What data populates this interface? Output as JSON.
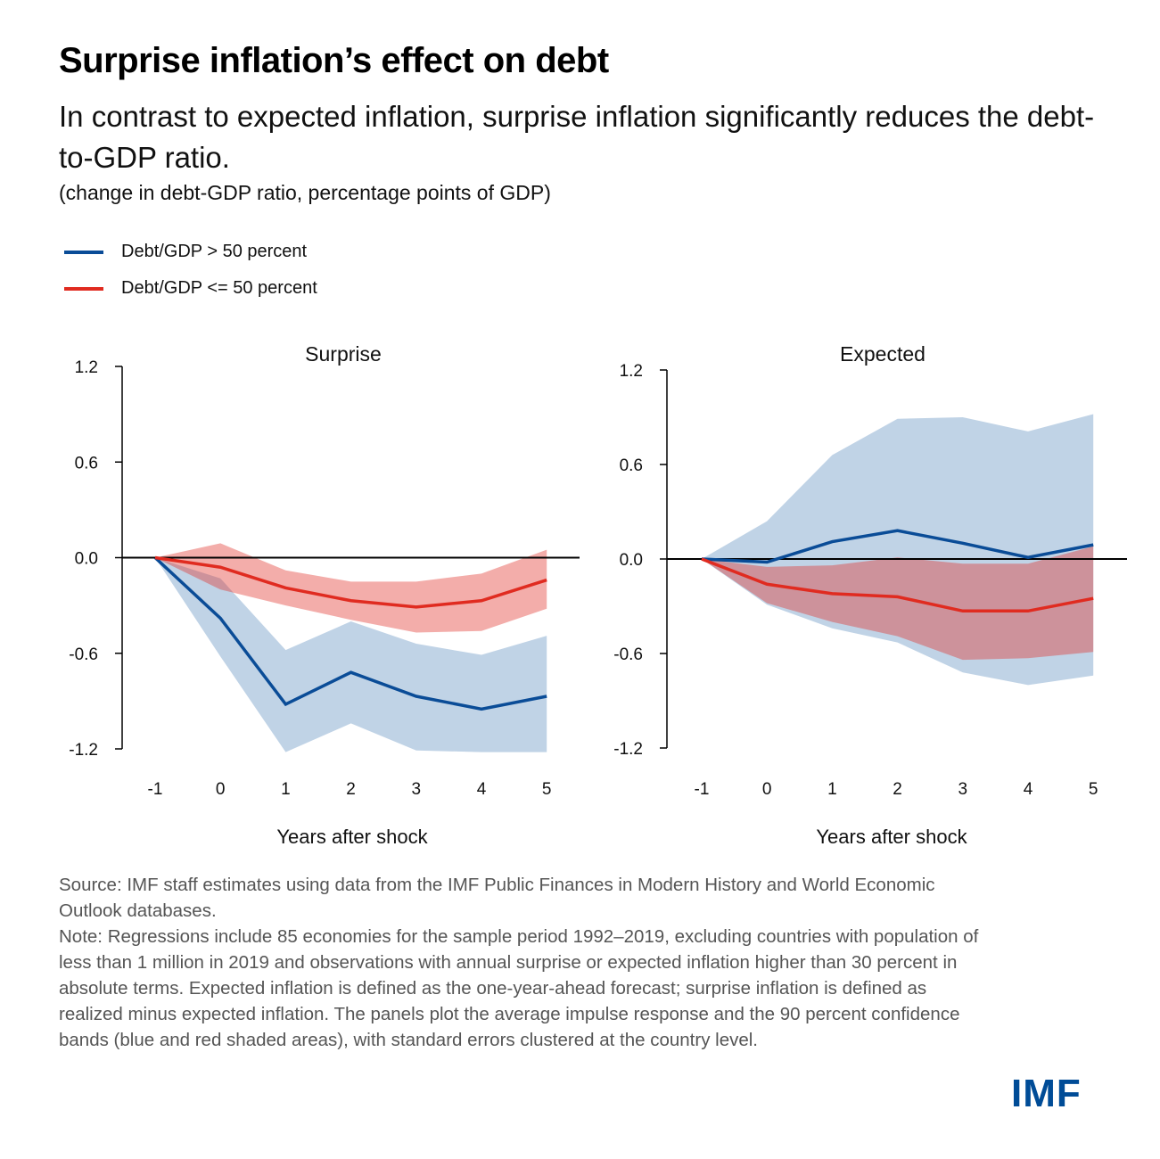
{
  "header": {
    "title": "Surprise inflation’s effect on debt",
    "subtitle": "In contrast to expected inflation, surprise inflation significantly reduces the debt-to-GDP ratio.",
    "units": "(change in debt-GDP ratio, percentage points of GDP)"
  },
  "legend": [
    {
      "label": "Debt/GDP > 50 percent",
      "color": "#0a4c97"
    },
    {
      "label": "Debt/GDP <= 50 percent",
      "color": "#e02b20"
    }
  ],
  "colors": {
    "high_debt_line": "#0a4c97",
    "high_debt_band": "#c0d3e6",
    "low_debt_line": "#e02b20",
    "low_debt_band": "rgba(226,50,43,0.4)",
    "brand": "#004c97"
  },
  "chart_data": [
    {
      "type": "line",
      "title": "Surprise",
      "xlabel": "Years after shock",
      "ylabel": "",
      "x": [
        -1,
        0,
        1,
        2,
        3,
        4,
        5
      ],
      "x_tick_labels": [
        "-1",
        "0",
        "1",
        "2",
        "3",
        "4",
        "5"
      ],
      "ylim": [
        -1.2,
        1.2
      ],
      "y_ticks": [
        1.2,
        0.6,
        0.0,
        -0.6,
        -1.2
      ],
      "y_tick_labels": [
        "1.2",
        "0.6",
        "0.0",
        "-0.6",
        "-1.2"
      ],
      "grid": false,
      "series": [
        {
          "name": "Debt/GDP > 50 percent",
          "values": [
            0,
            -0.38,
            -0.92,
            -0.72,
            -0.87,
            -0.95,
            -0.87
          ],
          "band_upper": [
            0,
            -0.13,
            -0.58,
            -0.4,
            -0.54,
            -0.61,
            -0.49
          ],
          "band_lower": [
            0,
            -0.62,
            -1.25,
            -1.04,
            -1.21,
            -1.3,
            -1.3
          ]
        },
        {
          "name": "Debt/GDP <= 50 percent",
          "values": [
            0,
            -0.06,
            -0.19,
            -0.27,
            -0.31,
            -0.27,
            -0.14
          ],
          "band_upper": [
            0,
            0.09,
            -0.08,
            -0.15,
            -0.15,
            -0.1,
            0.05
          ],
          "band_lower": [
            0,
            -0.2,
            -0.3,
            -0.39,
            -0.47,
            -0.46,
            -0.32
          ]
        }
      ]
    },
    {
      "type": "line",
      "title": "Expected",
      "xlabel": "Years after shock",
      "ylabel": "",
      "x": [
        -1,
        0,
        1,
        2,
        3,
        4,
        5
      ],
      "x_tick_labels": [
        "-1",
        "0",
        "1",
        "2",
        "3",
        "4",
        "5"
      ],
      "ylim": [
        -1.2,
        1.2
      ],
      "y_ticks": [
        1.2,
        0.6,
        0.0,
        -0.6,
        -1.2
      ],
      "y_tick_labels": [
        "1.2",
        "0.6",
        "0.0",
        "-0.6",
        "-1.2"
      ],
      "grid": false,
      "series": [
        {
          "name": "Debt/GDP > 50 percent",
          "values": [
            0,
            -0.02,
            0.11,
            0.18,
            0.1,
            0.01,
            0.09
          ],
          "band_upper": [
            0,
            0.24,
            0.66,
            0.89,
            0.9,
            0.81,
            0.92
          ],
          "band_lower": [
            0,
            -0.29,
            -0.44,
            -0.53,
            -0.72,
            -0.8,
            -0.74
          ]
        },
        {
          "name": "Debt/GDP <= 50 percent",
          "values": [
            0,
            -0.16,
            -0.22,
            -0.24,
            -0.33,
            -0.33,
            -0.25
          ],
          "band_upper": [
            0,
            -0.05,
            -0.04,
            0.01,
            -0.03,
            -0.03,
            0.08
          ],
          "band_lower": [
            0,
            -0.28,
            -0.4,
            -0.49,
            -0.64,
            -0.63,
            -0.59
          ]
        }
      ]
    }
  ],
  "footer": {
    "source": "Source: IMF staff estimates using data from the IMF Public Finances in Modern History and World Economic Outlook databases.",
    "note": "Note: Regressions include 85 economies for the sample period 1992–2019, excluding countries with population of less than 1 million in 2019 and observations with annual surprise or expected inflation higher than 30 percent in absolute terms. Expected inflation is defined as the one-year-ahead forecast; surprise inflation is defined as realized minus expected inflation. The panels plot the average impulse response and the 90 percent confidence bands (blue and red shaded areas), with standard errors clustered at the country level."
  },
  "logo": {
    "text": "IMF"
  }
}
